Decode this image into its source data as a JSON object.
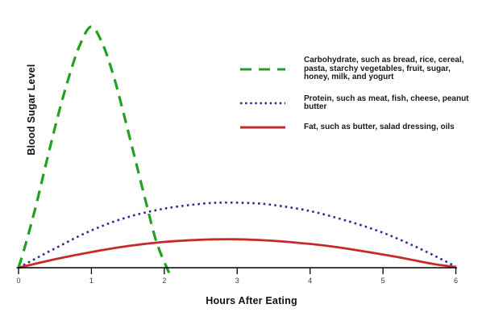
{
  "chart_data": {
    "type": "line",
    "title": "",
    "xlabel": "Hours After Eating",
    "ylabel": "Blood Sugar Level",
    "x_ticks": [
      0,
      1,
      2,
      3,
      4,
      5,
      6
    ],
    "xlim": [
      0,
      6
    ],
    "ylim": [
      0,
      105
    ],
    "grid": false,
    "legend_position": "upper right",
    "axis_color": "#000000",
    "series": [
      {
        "key": "protein",
        "name": "Protein",
        "legend_lines": [
          "Protein, such as meat, fish, cheese, peanut",
          "butter"
        ],
        "color": "#2b2b96",
        "line_style": "dotted",
        "line_width": 2.6,
        "x": [
          0,
          0.5,
          1.0,
          1.5,
          2.0,
          2.5,
          2.8,
          3.2,
          3.5,
          4.0,
          4.5,
          5.0,
          5.5,
          6.0
        ],
        "y": [
          0,
          8,
          15.5,
          21,
          24.5,
          26.5,
          27,
          26.8,
          26,
          23.5,
          19.5,
          14.5,
          8,
          0.5
        ]
      },
      {
        "key": "fat",
        "name": "Fat",
        "legend_lines": [
          "Fat, such as butter, salad dressing, oils"
        ],
        "color": "#c62b2b",
        "line_style": "solid",
        "line_width": 2.8,
        "x": [
          0,
          0.5,
          1.0,
          1.5,
          2.0,
          2.5,
          2.9,
          3.3,
          3.7,
          4.2,
          4.7,
          5.2,
          5.7,
          6.0
        ],
        "y": [
          0,
          3.5,
          6.5,
          9,
          10.7,
          11.6,
          11.8,
          11.5,
          10.7,
          9.2,
          7,
          4.4,
          1.5,
          0.3
        ]
      },
      {
        "key": "carbohydrate",
        "name": "Carbohydrate",
        "legend_lines": [
          "Carbohydrate, such as bread, rice, cereal,",
          "pasta, starchy vegetables, fruit, sugar,",
          "honey, milk, and yogurt"
        ],
        "color": "#21a121",
        "line_style": "dashed",
        "line_width": 3.2,
        "x": [
          0,
          0.1,
          0.25,
          0.4,
          0.55,
          0.7,
          0.85,
          1.0,
          1.15,
          1.3,
          1.45,
          1.6,
          1.75,
          1.9,
          2.1
        ],
        "y": [
          0,
          10,
          27,
          46,
          64,
          80,
          93,
          100,
          93,
          80,
          63,
          45,
          27,
          10,
          -4.5
        ]
      }
    ],
    "legend_order": [
      "carbohydrate",
      "protein",
      "fat"
    ]
  }
}
